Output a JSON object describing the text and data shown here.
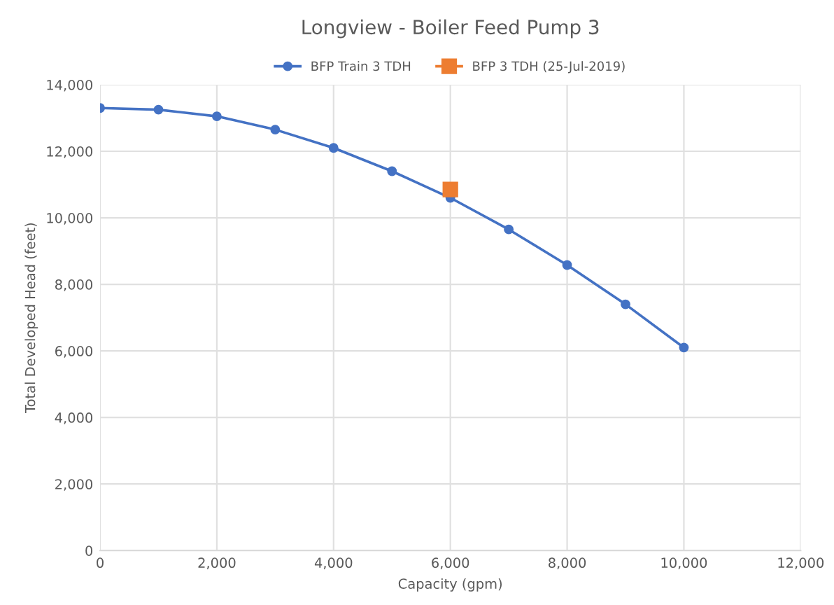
{
  "chart_data": {
    "type": "line",
    "title": "Longview - Boiler Feed Pump 3",
    "xlabel": "Capacity (gpm)",
    "ylabel": "Total Developed Head (feet)",
    "series": [
      {
        "name": "BFP Train 3 TDH",
        "color": "#4472c4",
        "marker": "circle",
        "x": [
          0,
          1000,
          2000,
          3000,
          4000,
          5000,
          6000,
          7000,
          8000,
          9000,
          10000
        ],
        "values": [
          13300,
          13250,
          13050,
          12650,
          12100,
          11400,
          10600,
          9650,
          8580,
          7400,
          6100
        ]
      },
      {
        "name": "BFP 3 TDH (25-Jul-2019)",
        "color": "#ed7d31",
        "marker": "square",
        "x": [
          6000
        ],
        "values": [
          10850
        ]
      }
    ],
    "xlim": [
      0,
      12000
    ],
    "xticks": [
      {
        "value": 0,
        "label": "0"
      },
      {
        "value": 2000,
        "label": "2,000"
      },
      {
        "value": 4000,
        "label": "4,000"
      },
      {
        "value": 6000,
        "label": "6,000"
      },
      {
        "value": 8000,
        "label": "8,000"
      },
      {
        "value": 10000,
        "label": "10,000"
      },
      {
        "value": 12000,
        "label": "12,000"
      }
    ],
    "ylim": [
      0,
      14000
    ],
    "yticks": [
      {
        "value": 0,
        "label": "0"
      },
      {
        "value": 2000,
        "label": "2,000"
      },
      {
        "value": 4000,
        "label": "4,000"
      },
      {
        "value": 6000,
        "label": "6,000"
      },
      {
        "value": 8000,
        "label": "8,000"
      },
      {
        "value": 10000,
        "label": "10,000"
      },
      {
        "value": 12000,
        "label": "12,000"
      },
      {
        "value": 14000,
        "label": "14,000"
      }
    ],
    "grid": true,
    "legend": "top"
  }
}
